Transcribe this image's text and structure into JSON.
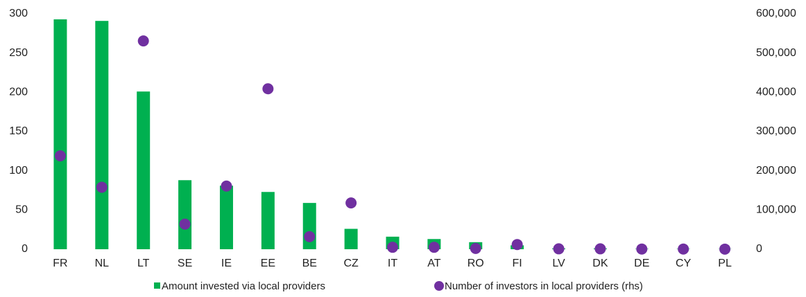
{
  "chart_data": {
    "type": "bar_scatter",
    "categories": [
      "FR",
      "NL",
      "LT",
      "SE",
      "IE",
      "EE",
      "BE",
      "CZ",
      "IT",
      "AT",
      "RO",
      "FI",
      "LV",
      "DK",
      "DE",
      "CY",
      "PL"
    ],
    "series": [
      {
        "name": "Amount invested via local providers",
        "color": "#00b050",
        "type": "bar",
        "values": [
          293,
          291,
          201,
          88,
          81,
          73,
          59,
          26,
          16,
          13,
          9,
          5,
          1,
          1,
          0.5,
          0.5,
          0.3
        ]
      },
      {
        "name": "Number of investors in local providers (rhs)",
        "color": "#7030a0",
        "type": "scatter",
        "axis": "y2",
        "values": [
          238000,
          158000,
          531000,
          64000,
          161000,
          409000,
          32000,
          118000,
          5000,
          5000,
          2000,
          12000,
          1000,
          1000,
          500,
          500,
          300
        ]
      }
    ],
    "ylim": [
      0,
      300
    ],
    "yticks": [
      0,
      50,
      100,
      150,
      200,
      250,
      300
    ],
    "y2lim": [
      0,
      600000
    ],
    "y2ticks": [
      0,
      {
        "value": 100000,
        "label": "100,000"
      },
      {
        "value": 200000,
        "label": "200,000"
      },
      {
        "value": 300000,
        "label": "300,000"
      },
      {
        "value": 400000,
        "label": "400,000"
      },
      {
        "value": 500000,
        "label": "500,000"
      },
      {
        "value": 600000,
        "label": "600,000"
      }
    ],
    "legend": "bottom"
  }
}
